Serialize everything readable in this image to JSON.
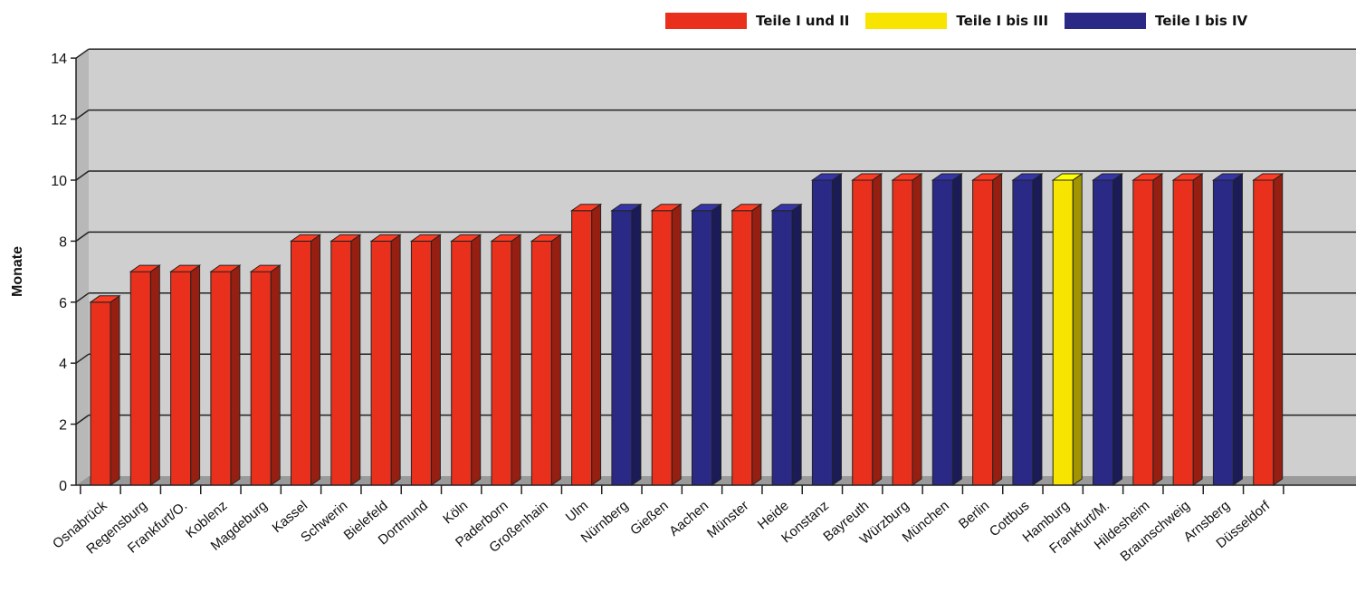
{
  "chart_data": {
    "type": "bar",
    "title": "",
    "xlabel": "",
    "ylabel": "Monate",
    "ylim": [
      0,
      14
    ],
    "yticks": [
      0,
      2,
      4,
      6,
      8,
      10,
      12,
      14
    ],
    "grid": true,
    "legend_position": "top-right",
    "legend": [
      {
        "name": "Teile I und II",
        "color": "#e8301c"
      },
      {
        "name": "Teile I bis III",
        "color": "#f7e400"
      },
      {
        "name": "Teile I bis IV",
        "color": "#2a2a86"
      }
    ],
    "categories": [
      "Osnabrück",
      "Regensburg",
      "Frankfurt/O.",
      "Koblenz",
      "Magdeburg",
      "Kassel",
      "Schwerin",
      "Bielefeld",
      "Dortmund",
      "Köln",
      "Paderborn",
      "Großenhain",
      "Ulm",
      "Nürnberg",
      "Gießen",
      "Aachen",
      "Münster",
      "Heide",
      "Konstanz",
      "Bayreuth",
      "Würzburg",
      "München",
      "Berlin",
      "Cottbus",
      "Hamburg",
      "Frankfurt/M.",
      "Hildesheim",
      "Braunschweig",
      "Arnsberg",
      "Düsseldorf"
    ],
    "values": [
      6,
      7,
      7,
      7,
      7,
      8,
      8,
      8,
      8,
      8,
      8,
      8,
      9,
      9,
      9,
      9,
      9,
      9,
      10,
      10,
      10,
      10,
      10,
      10,
      10,
      10,
      10,
      10,
      10,
      10
    ],
    "groups": [
      0,
      0,
      0,
      0,
      0,
      0,
      0,
      0,
      0,
      0,
      0,
      0,
      0,
      2,
      0,
      2,
      0,
      2,
      2,
      0,
      0,
      2,
      0,
      2,
      1,
      2,
      0,
      0,
      2,
      0
    ]
  }
}
